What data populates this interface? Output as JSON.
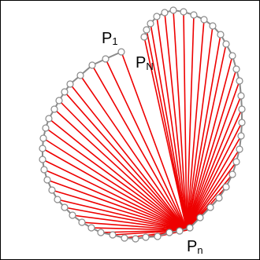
{
  "labels": {
    "first": "P",
    "first_sub": "1",
    "last": "P",
    "last_sub": "N",
    "origin": "P",
    "origin_sub": "n"
  },
  "colors": {
    "background": "#ffffff",
    "frame": "#000000",
    "curve": "#8a8a8a",
    "rays": "#ee0000",
    "points": "#8a8a8a"
  }
}
